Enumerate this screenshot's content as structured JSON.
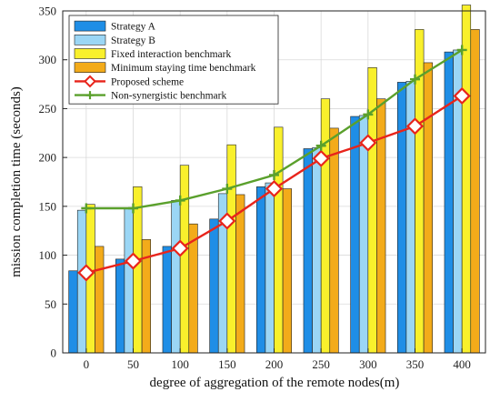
{
  "chart_data": {
    "type": "bar",
    "xlabel": "degree of aggregation of the remote nodes(m)",
    "ylabel": "mission completion time (seconds)",
    "categories": [
      "0",
      "50",
      "100",
      "150",
      "200",
      "250",
      "300",
      "350",
      "400"
    ],
    "ylim": [
      0,
      350
    ],
    "yticks": [
      "0",
      "50",
      "100",
      "150",
      "200",
      "250",
      "300",
      "350"
    ],
    "grid": true,
    "legend_position": "top-left",
    "series": [
      {
        "name": "Strategy A",
        "kind": "bar",
        "color": "#1f8ee6",
        "values": [
          84,
          96,
          109,
          137,
          170,
          209,
          242,
          277,
          308
        ]
      },
      {
        "name": "Strategy B",
        "kind": "bar",
        "color": "#9bd6f5",
        "values": [
          146,
          148,
          156,
          163,
          174,
          210,
          243,
          278,
          310
        ]
      },
      {
        "name": "Fixed interaction benchmark",
        "kind": "bar",
        "color": "#f9f02c",
        "values": [
          152,
          170,
          192,
          213,
          231,
          260,
          292,
          331,
          356
        ]
      },
      {
        "name": "Minimum staying time benchmark",
        "kind": "bar",
        "color": "#f3ab1a",
        "values": [
          109,
          116,
          132,
          162,
          168,
          230,
          260,
          297,
          331
        ]
      },
      {
        "name": "Proposed scheme",
        "kind": "line",
        "marker": "diamond",
        "color": "#e8241b",
        "values": [
          82,
          94,
          107,
          135,
          168,
          199,
          215,
          232,
          263
        ]
      },
      {
        "name": "Non-synergistic benchmark",
        "kind": "line",
        "marker": "plus",
        "color": "#5aa02c",
        "values": [
          148,
          148,
          156,
          168,
          182,
          212,
          244,
          280,
          310
        ]
      }
    ]
  }
}
